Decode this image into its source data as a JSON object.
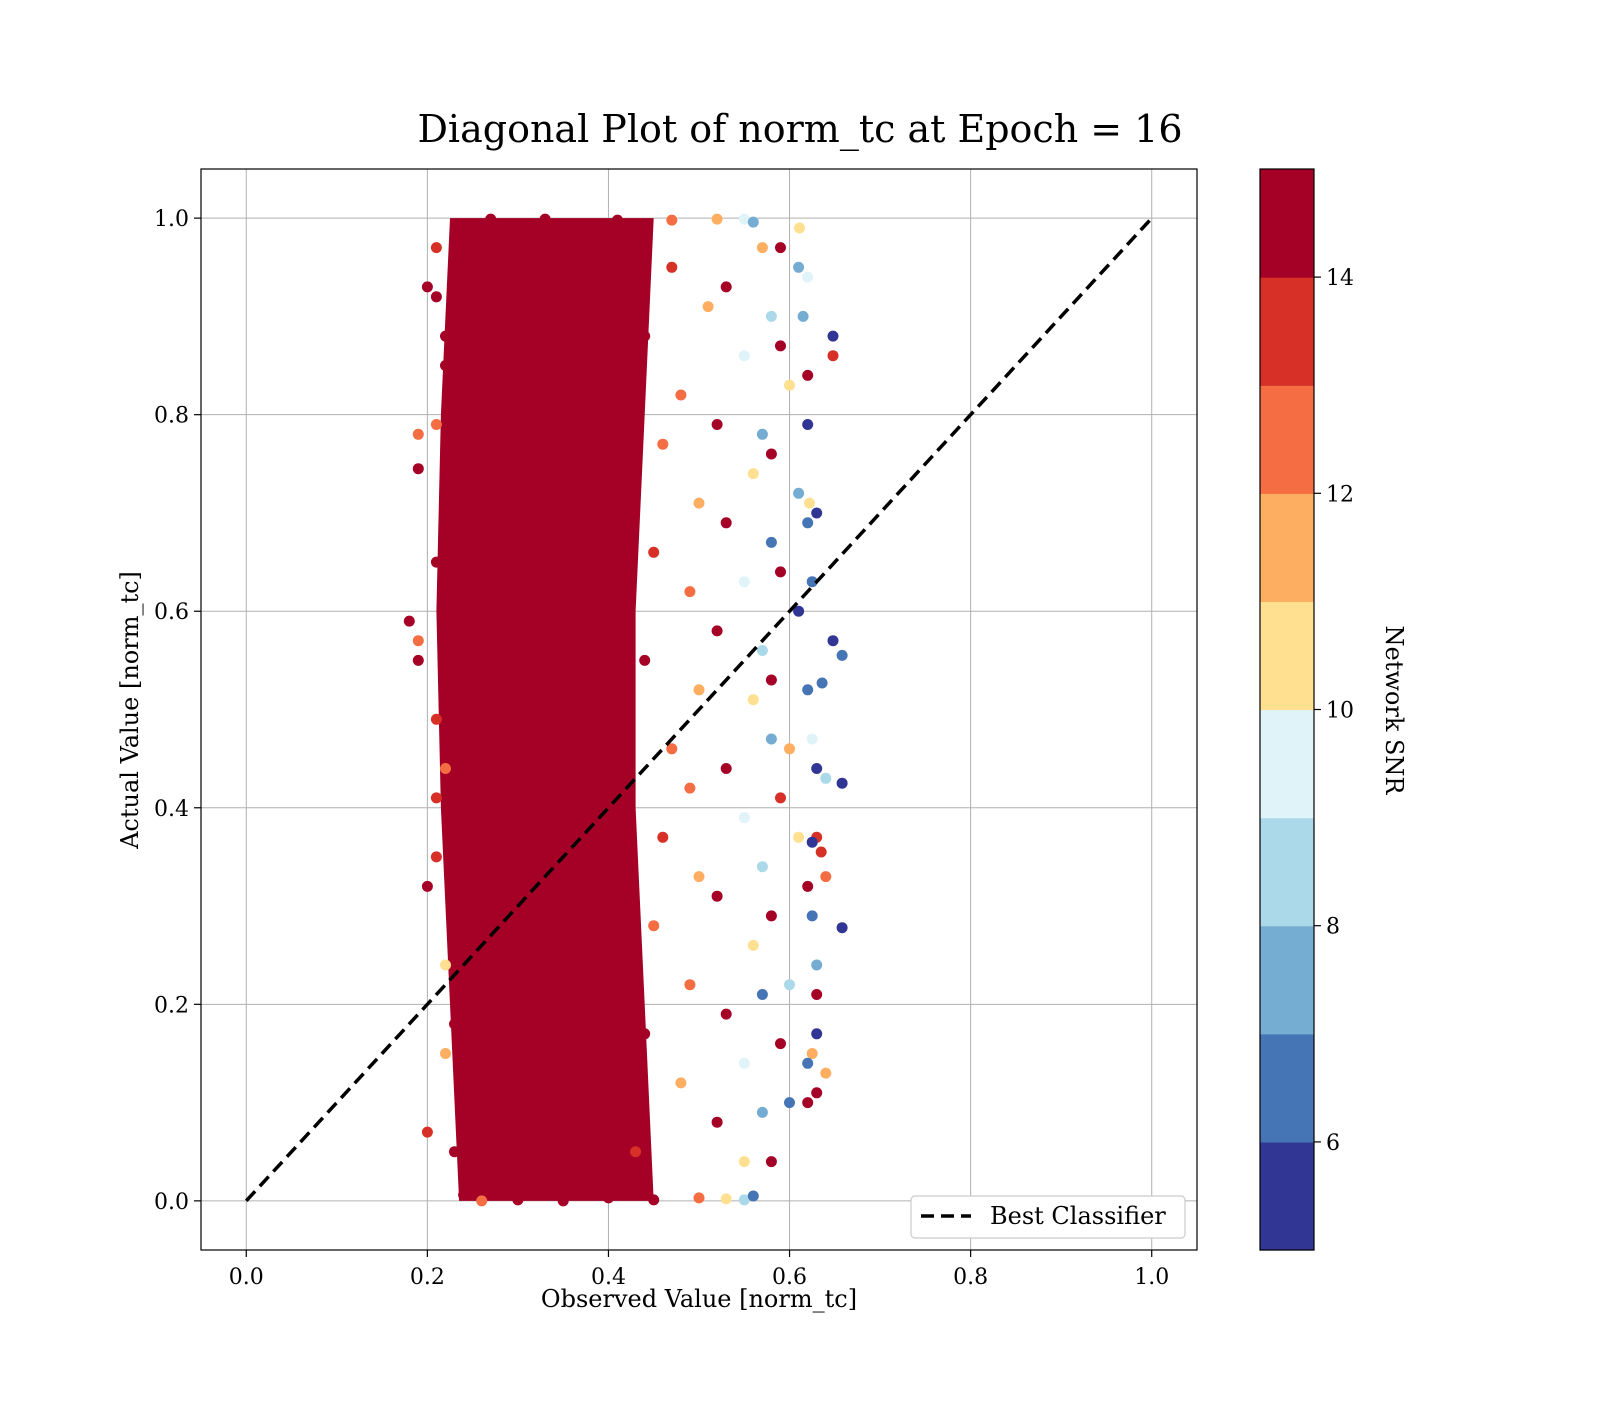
{
  "chart_data": {
    "type": "scatter",
    "title": "Diagonal Plot of norm_tc at Epoch = 16",
    "xlabel": "Observed Value [norm_tc]",
    "ylabel": "Actual Value [norm_tc]",
    "xlim": [
      -0.05,
      1.05
    ],
    "ylim": [
      -0.05,
      1.05
    ],
    "xticks": [
      "0.0",
      "0.2",
      "0.4",
      "0.6",
      "0.8",
      "1.0"
    ],
    "yticks": [
      "0.0",
      "0.2",
      "0.4",
      "0.6",
      "0.8",
      "1.0"
    ],
    "grid": true,
    "legend": {
      "placement": "lower-right",
      "entries": [
        "Best Classifier"
      ]
    },
    "reference_line": {
      "name": "Best Classifier",
      "style": "dashed",
      "color": "#000000",
      "x": [
        0,
        1
      ],
      "y": [
        0,
        1
      ]
    },
    "colorbar": {
      "label": "Network SNR",
      "range": [
        5,
        15
      ],
      "ticks": [
        "6",
        "8",
        "10",
        "12",
        "14"
      ],
      "boundaries": [
        5,
        6,
        7,
        8,
        9,
        10,
        11,
        12,
        13,
        14,
        15
      ],
      "colors": [
        "#313695",
        "#4575b4",
        "#74add1",
        "#abd9e9",
        "#e0f3f8",
        "#fee090",
        "#fdae61",
        "#f46d43",
        "#d73027",
        "#a50026"
      ],
      "colormap": "RdYlBu_r"
    },
    "points": [
      {
        "x": 0.24,
        "y": 0.006,
        "snr": 15
      },
      {
        "x": 0.27,
        "y": 0.1,
        "snr": 15
      },
      {
        "x": 0.3,
        "y": 0.2,
        "snr": 15
      },
      {
        "x": 0.33,
        "y": 0.3,
        "snr": 15
      },
      {
        "x": 0.36,
        "y": 0.4,
        "snr": 15
      },
      {
        "x": 0.28,
        "y": 0.5,
        "snr": 15
      },
      {
        "x": 0.32,
        "y": 0.6,
        "snr": 15
      },
      {
        "x": 0.25,
        "y": 0.7,
        "snr": 15
      },
      {
        "x": 0.35,
        "y": 0.8,
        "snr": 15
      },
      {
        "x": 0.29,
        "y": 0.9,
        "snr": 15
      },
      {
        "x": 0.38,
        "y": 0.99,
        "snr": 15
      },
      {
        "x": 0.22,
        "y": 0.45,
        "snr": 15
      },
      {
        "x": 0.21,
        "y": 0.65,
        "snr": 15
      },
      {
        "x": 0.22,
        "y": 0.85,
        "snr": 15
      },
      {
        "x": 0.23,
        "y": 0.25,
        "snr": 15
      },
      {
        "x": 0.23,
        "y": 0.05,
        "snr": 15
      },
      {
        "x": 0.18,
        "y": 0.59,
        "snr": 15
      },
      {
        "x": 0.19,
        "y": 0.55,
        "snr": 15
      },
      {
        "x": 0.19,
        "y": 0.745,
        "snr": 15
      },
      {
        "x": 0.2,
        "y": 0.93,
        "snr": 15
      },
      {
        "x": 0.19,
        "y": 0.78,
        "snr": 12
      },
      {
        "x": 0.19,
        "y": 0.57,
        "snr": 12
      },
      {
        "x": 0.21,
        "y": 0.79,
        "snr": 12
      },
      {
        "x": 0.21,
        "y": 0.35,
        "snr": 13
      },
      {
        "x": 0.2,
        "y": 0.07,
        "snr": 13
      },
      {
        "x": 0.2,
        "y": 0.32,
        "snr": 15
      },
      {
        "x": 0.21,
        "y": 0.41,
        "snr": 13
      },
      {
        "x": 0.22,
        "y": 0.15,
        "snr": 11
      },
      {
        "x": 0.22,
        "y": 0.24,
        "snr": 10
      },
      {
        "x": 0.22,
        "y": 0.44,
        "snr": 12
      },
      {
        "x": 0.21,
        "y": 0.49,
        "snr": 13
      },
      {
        "x": 0.22,
        "y": 0.53,
        "snr": 15
      },
      {
        "x": 0.22,
        "y": 0.88,
        "snr": 14
      },
      {
        "x": 0.21,
        "y": 0.92,
        "snr": 15
      },
      {
        "x": 0.21,
        "y": 0.97,
        "snr": 13
      },
      {
        "x": 0.23,
        "y": 0.18,
        "snr": 15
      },
      {
        "x": 0.26,
        "y": 0.0,
        "snr": 12
      },
      {
        "x": 0.3,
        "y": 0.001,
        "snr": 15
      },
      {
        "x": 0.35,
        "y": 0.0,
        "snr": 14
      },
      {
        "x": 0.4,
        "y": 0.003,
        "snr": 15
      },
      {
        "x": 0.45,
        "y": 0.001,
        "snr": 14
      },
      {
        "x": 0.5,
        "y": 0.003,
        "snr": 12
      },
      {
        "x": 0.53,
        "y": 0.002,
        "snr": 10
      },
      {
        "x": 0.55,
        "y": 0.001,
        "snr": 8
      },
      {
        "x": 0.56,
        "y": 0.005,
        "snr": 6
      },
      {
        "x": 0.27,
        "y": 0.999,
        "snr": 15
      },
      {
        "x": 0.33,
        "y": 0.999,
        "snr": 15
      },
      {
        "x": 0.41,
        "y": 0.998,
        "snr": 14
      },
      {
        "x": 0.47,
        "y": 0.998,
        "snr": 12
      },
      {
        "x": 0.52,
        "y": 0.999,
        "snr": 11
      },
      {
        "x": 0.55,
        "y": 0.999,
        "snr": 9
      },
      {
        "x": 0.56,
        "y": 0.996,
        "snr": 7
      },
      {
        "x": 0.43,
        "y": 0.05,
        "snr": 13
      },
      {
        "x": 0.44,
        "y": 0.17,
        "snr": 14
      },
      {
        "x": 0.45,
        "y": 0.28,
        "snr": 12
      },
      {
        "x": 0.46,
        "y": 0.37,
        "snr": 13
      },
      {
        "x": 0.47,
        "y": 0.46,
        "snr": 12
      },
      {
        "x": 0.44,
        "y": 0.55,
        "snr": 14
      },
      {
        "x": 0.45,
        "y": 0.66,
        "snr": 13
      },
      {
        "x": 0.46,
        "y": 0.77,
        "snr": 12
      },
      {
        "x": 0.44,
        "y": 0.88,
        "snr": 14
      },
      {
        "x": 0.47,
        "y": 0.95,
        "snr": 13
      },
      {
        "x": 0.48,
        "y": 0.12,
        "snr": 11
      },
      {
        "x": 0.49,
        "y": 0.22,
        "snr": 12
      },
      {
        "x": 0.5,
        "y": 0.33,
        "snr": 11
      },
      {
        "x": 0.49,
        "y": 0.42,
        "snr": 12
      },
      {
        "x": 0.5,
        "y": 0.52,
        "snr": 11
      },
      {
        "x": 0.49,
        "y": 0.62,
        "snr": 12
      },
      {
        "x": 0.5,
        "y": 0.71,
        "snr": 11
      },
      {
        "x": 0.48,
        "y": 0.82,
        "snr": 12
      },
      {
        "x": 0.51,
        "y": 0.91,
        "snr": 11
      },
      {
        "x": 0.52,
        "y": 0.08,
        "snr": 14
      },
      {
        "x": 0.53,
        "y": 0.19,
        "snr": 15
      },
      {
        "x": 0.52,
        "y": 0.31,
        "snr": 14
      },
      {
        "x": 0.53,
        "y": 0.44,
        "snr": 15
      },
      {
        "x": 0.52,
        "y": 0.58,
        "snr": 14
      },
      {
        "x": 0.53,
        "y": 0.69,
        "snr": 15
      },
      {
        "x": 0.52,
        "y": 0.79,
        "snr": 14
      },
      {
        "x": 0.53,
        "y": 0.93,
        "snr": 15
      },
      {
        "x": 0.55,
        "y": 0.04,
        "snr": 10
      },
      {
        "x": 0.55,
        "y": 0.14,
        "snr": 9
      },
      {
        "x": 0.56,
        "y": 0.26,
        "snr": 10
      },
      {
        "x": 0.55,
        "y": 0.39,
        "snr": 9
      },
      {
        "x": 0.56,
        "y": 0.51,
        "snr": 10
      },
      {
        "x": 0.55,
        "y": 0.63,
        "snr": 9
      },
      {
        "x": 0.56,
        "y": 0.74,
        "snr": 10
      },
      {
        "x": 0.55,
        "y": 0.86,
        "snr": 9
      },
      {
        "x": 0.57,
        "y": 0.97,
        "snr": 11
      },
      {
        "x": 0.57,
        "y": 0.09,
        "snr": 7
      },
      {
        "x": 0.57,
        "y": 0.21,
        "snr": 6
      },
      {
        "x": 0.57,
        "y": 0.34,
        "snr": 8
      },
      {
        "x": 0.58,
        "y": 0.47,
        "snr": 7
      },
      {
        "x": 0.57,
        "y": 0.56,
        "snr": 8
      },
      {
        "x": 0.58,
        "y": 0.67,
        "snr": 6
      },
      {
        "x": 0.57,
        "y": 0.78,
        "snr": 7
      },
      {
        "x": 0.58,
        "y": 0.9,
        "snr": 8
      },
      {
        "x": 0.58,
        "y": 0.04,
        "snr": 15
      },
      {
        "x": 0.59,
        "y": 0.16,
        "snr": 14
      },
      {
        "x": 0.58,
        "y": 0.29,
        "snr": 15
      },
      {
        "x": 0.59,
        "y": 0.41,
        "snr": 13
      },
      {
        "x": 0.58,
        "y": 0.53,
        "snr": 15
      },
      {
        "x": 0.59,
        "y": 0.64,
        "snr": 14
      },
      {
        "x": 0.58,
        "y": 0.76,
        "snr": 15
      },
      {
        "x": 0.59,
        "y": 0.87,
        "snr": 14
      },
      {
        "x": 0.59,
        "y": 0.97,
        "snr": 15
      },
      {
        "x": 0.6,
        "y": 0.1,
        "snr": 6
      },
      {
        "x": 0.6,
        "y": 0.22,
        "snr": 8
      },
      {
        "x": 0.61,
        "y": 0.37,
        "snr": 10
      },
      {
        "x": 0.6,
        "y": 0.46,
        "snr": 11
      },
      {
        "x": 0.61,
        "y": 0.6,
        "snr": 5
      },
      {
        "x": 0.61,
        "y": 0.72,
        "snr": 7
      },
      {
        "x": 0.6,
        "y": 0.83,
        "snr": 10
      },
      {
        "x": 0.61,
        "y": 0.95,
        "snr": 7
      },
      {
        "x": 0.611,
        "y": 0.99,
        "snr": 10
      },
      {
        "x": 0.62,
        "y": 0.94,
        "snr": 9
      },
      {
        "x": 0.615,
        "y": 0.9,
        "snr": 7
      },
      {
        "x": 0.62,
        "y": 0.84,
        "snr": 15
      },
      {
        "x": 0.62,
        "y": 0.79,
        "snr": 5
      },
      {
        "x": 0.622,
        "y": 0.71,
        "snr": 10
      },
      {
        "x": 0.63,
        "y": 0.7,
        "snr": 5
      },
      {
        "x": 0.62,
        "y": 0.69,
        "snr": 6
      },
      {
        "x": 0.625,
        "y": 0.63,
        "snr": 6
      },
      {
        "x": 0.62,
        "y": 0.52,
        "snr": 6
      },
      {
        "x": 0.625,
        "y": 0.47,
        "snr": 9
      },
      {
        "x": 0.63,
        "y": 0.44,
        "snr": 5
      },
      {
        "x": 0.64,
        "y": 0.43,
        "snr": 8
      },
      {
        "x": 0.63,
        "y": 0.37,
        "snr": 13
      },
      {
        "x": 0.635,
        "y": 0.355,
        "snr": 13
      },
      {
        "x": 0.625,
        "y": 0.365,
        "snr": 5
      },
      {
        "x": 0.62,
        "y": 0.32,
        "snr": 14
      },
      {
        "x": 0.64,
        "y": 0.33,
        "snr": 12
      },
      {
        "x": 0.625,
        "y": 0.29,
        "snr": 6
      },
      {
        "x": 0.63,
        "y": 0.24,
        "snr": 7
      },
      {
        "x": 0.63,
        "y": 0.21,
        "snr": 14
      },
      {
        "x": 0.63,
        "y": 0.17,
        "snr": 5
      },
      {
        "x": 0.625,
        "y": 0.15,
        "snr": 11
      },
      {
        "x": 0.62,
        "y": 0.14,
        "snr": 6
      },
      {
        "x": 0.64,
        "y": 0.13,
        "snr": 11
      },
      {
        "x": 0.63,
        "y": 0.11,
        "snr": 14
      },
      {
        "x": 0.62,
        "y": 0.1,
        "snr": 15
      },
      {
        "x": 0.648,
        "y": 0.88,
        "snr": 5
      },
      {
        "x": 0.648,
        "y": 0.86,
        "snr": 13
      },
      {
        "x": 0.648,
        "y": 0.57,
        "snr": 5
      },
      {
        "x": 0.658,
        "y": 0.555,
        "snr": 6
      },
      {
        "x": 0.636,
        "y": 0.527,
        "snr": 6
      },
      {
        "x": 0.658,
        "y": 0.425,
        "snr": 5
      },
      {
        "x": 0.658,
        "y": 0.278,
        "snr": 5
      }
    ]
  }
}
